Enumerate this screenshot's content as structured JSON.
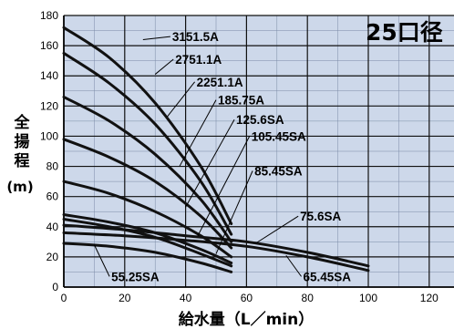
{
  "chart_data": {
    "type": "line",
    "badge": "25口径",
    "xlabel": "給水量（L／min）",
    "ylabel_chars": [
      "全",
      "揚",
      "程"
    ],
    "ylabel_unit": "(m)",
    "xlim": [
      0,
      130
    ],
    "ylim": [
      0,
      180
    ],
    "xticks": [
      0,
      20,
      40,
      60,
      80,
      100,
      120
    ],
    "yticks": [
      0,
      20,
      40,
      60,
      80,
      100,
      120,
      140,
      160,
      180
    ],
    "grid": true,
    "colors": {
      "plot_bg": "#cdd8ea",
      "curve": "#111111",
      "grid": "#111111",
      "minor_grid": "#7a8aa5"
    },
    "series": [
      {
        "name": "3151.5A",
        "x": [
          0,
          15,
          30,
          45,
          55
        ],
        "y": [
          172,
          152,
          122,
          80,
          42
        ]
      },
      {
        "name": "2751.1A",
        "x": [
          0,
          15,
          30,
          45,
          55
        ],
        "y": [
          155,
          135,
          108,
          70,
          35
        ]
      },
      {
        "name": "2251.1A",
        "x": [
          0,
          15,
          30,
          45,
          55
        ],
        "y": [
          126,
          110,
          88,
          58,
          30
        ]
      },
      {
        "name": "185.75A",
        "x": [
          0,
          15,
          30,
          45,
          55
        ],
        "y": [
          98,
          86,
          70,
          47,
          26
        ]
      },
      {
        "name": "125.6SA",
        "x": [
          0,
          15,
          30,
          45,
          55
        ],
        "y": [
          70,
          62,
          50,
          34,
          20
        ]
      },
      {
        "name": "105.45SA",
        "x": [
          0,
          15,
          30,
          45,
          55
        ],
        "y": [
          48,
          43,
          36,
          25,
          16
        ]
      },
      {
        "name": "85.45SA",
        "x": [
          0,
          15,
          30,
          45,
          55
        ],
        "y": [
          45,
          40,
          33,
          22,
          14
        ]
      },
      {
        "name": "75.6SA",
        "x": [
          0,
          20,
          40,
          60,
          80,
          100
        ],
        "y": [
          41,
          38,
          34,
          30,
          23,
          14
        ]
      },
      {
        "name": "65.45SA",
        "x": [
          0,
          20,
          40,
          60,
          80,
          100
        ],
        "y": [
          36,
          34,
          31,
          27,
          20,
          11
        ]
      },
      {
        "name": "55.25SA",
        "x": [
          0,
          15,
          30,
          45,
          55
        ],
        "y": [
          29,
          27,
          23,
          16,
          10
        ]
      }
    ],
    "labels": [
      {
        "text": "3151.5A",
        "series": "3151.5A",
        "at": [
          26,
          164
        ],
        "pos": [
          35,
          163
        ]
      },
      {
        "text": "2751.1A",
        "series": "2751.1A",
        "at": [
          30,
          141
        ],
        "pos": [
          36,
          148
        ]
      },
      {
        "text": "2251.1A",
        "series": "2251.1A",
        "at": [
          34,
          113
        ],
        "pos": [
          43,
          133
        ]
      },
      {
        "text": "185.75A",
        "series": "185.75A",
        "at": [
          38,
          80
        ],
        "pos": [
          50,
          121
        ]
      },
      {
        "text": "125.6SA",
        "series": "125.6SA",
        "at": [
          40,
          53
        ],
        "pos": [
          56,
          108
        ]
      },
      {
        "text": "105.45SA",
        "series": "105.45SA",
        "at": [
          44,
          34
        ],
        "pos": [
          61,
          97
        ]
      },
      {
        "text": "85.45SA",
        "series": "85.45SA",
        "at": [
          50,
          22
        ],
        "pos": [
          62,
          74
        ]
      },
      {
        "text": "75.6SA",
        "series": "75.6SA",
        "at": [
          63,
          29
        ],
        "pos": [
          77,
          44
        ]
      },
      {
        "text": "65.45SA",
        "series": "65.45SA",
        "at": [
          73,
          21
        ],
        "pos": [
          78,
          4
        ]
      },
      {
        "text": "55.25SA",
        "series": "55.25SA",
        "at": [
          10,
          28
        ],
        "pos": [
          15,
          4
        ]
      }
    ]
  }
}
